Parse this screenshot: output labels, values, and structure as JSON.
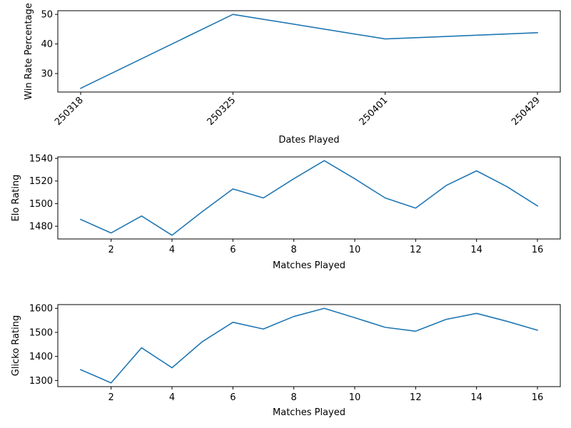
{
  "chart_data": [
    {
      "type": "line",
      "title": "",
      "xlabel": "Dates Played",
      "ylabel": "Win Rate Percentage",
      "x": [
        "250318",
        "250325",
        "250401",
        "250429"
      ],
      "series": [
        {
          "values": [
            25.0,
            50.0,
            41.7,
            43.8
          ]
        }
      ],
      "ylim": [
        23.75,
        51.25
      ],
      "yticks": [
        30,
        40,
        50
      ],
      "grid": false,
      "color": "#1f77b4"
    },
    {
      "type": "line",
      "title": "",
      "xlabel": "Matches Played",
      "ylabel": "Elo Rating",
      "x": [
        1,
        2,
        3,
        4,
        5,
        6,
        7,
        8,
        9,
        10,
        11,
        12,
        13,
        14,
        15,
        16
      ],
      "series": [
        {
          "values": [
            1486,
            1474,
            1489,
            1472,
            1493,
            1513,
            1505,
            1522,
            1538,
            1522,
            1505,
            1496,
            1516,
            1529,
            1515,
            1498
          ]
        }
      ],
      "xlim": [
        0.25,
        16.75
      ],
      "xticks": [
        2,
        4,
        6,
        8,
        10,
        12,
        14,
        16
      ],
      "ylim": [
        1468.7,
        1541.3
      ],
      "yticks": [
        1480,
        1500,
        1520,
        1540
      ],
      "grid": false,
      "color": "#1f77b4"
    },
    {
      "type": "line",
      "title": "",
      "xlabel": "Matches Played",
      "ylabel": "Glicko Rating",
      "x": [
        1,
        2,
        3,
        4,
        5,
        6,
        7,
        8,
        9,
        10,
        11,
        12,
        13,
        14,
        15,
        16
      ],
      "series": [
        {
          "values": [
            1345,
            1290,
            1436,
            1353,
            1462,
            1542,
            1514,
            1566,
            1600,
            1561,
            1521,
            1505,
            1554,
            1579,
            1546,
            1509
          ]
        }
      ],
      "xlim": [
        0.25,
        16.75
      ],
      "xticks": [
        2,
        4,
        6,
        8,
        10,
        12,
        14,
        16
      ],
      "ylim": [
        1274.5,
        1615.5
      ],
      "yticks": [
        1300,
        1400,
        1500,
        1600
      ],
      "grid": false,
      "color": "#1f77b4"
    }
  ]
}
